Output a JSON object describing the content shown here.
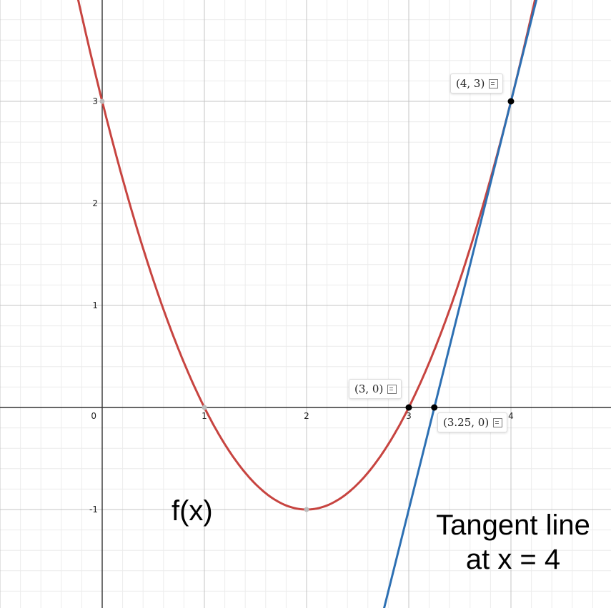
{
  "chart_data": {
    "type": "line",
    "xlim": [
      -1,
      5
    ],
    "ylim": [
      -2,
      4
    ],
    "grid": true,
    "x_ticks": [
      0,
      1,
      2,
      3,
      4
    ],
    "y_ticks": [
      -1,
      1,
      2,
      3
    ],
    "series": [
      {
        "color": "#c74440",
        "function": "(x-2)^2 - 1",
        "x": [
          -0.3,
          0,
          0.5,
          1,
          1.5,
          2,
          2.5,
          3,
          3.5,
          4,
          4.3
        ],
        "y": [
          4.29,
          3,
          1.25,
          0,
          -0.75,
          -1,
          -0.75,
          0,
          1.25,
          3,
          4.29
        ]
      },
      {
        "color": "#2d70b3",
        "function": "4x - 13",
        "x": [
          2.75,
          4.25
        ],
        "y": [
          -2,
          4
        ]
      }
    ],
    "points": [
      {
        "x": 4,
        "y": 3,
        "label": "(4, 3)"
      },
      {
        "x": 3,
        "y": 0,
        "label": "(3, 0)"
      },
      {
        "x": 3.25,
        "y": 0,
        "label": "(3.25, 0)"
      }
    ],
    "annotations": {
      "curve_label": "f(x)",
      "tangent_label_line1": "Tangent line",
      "tangent_label_line2": "at x = 4"
    }
  }
}
